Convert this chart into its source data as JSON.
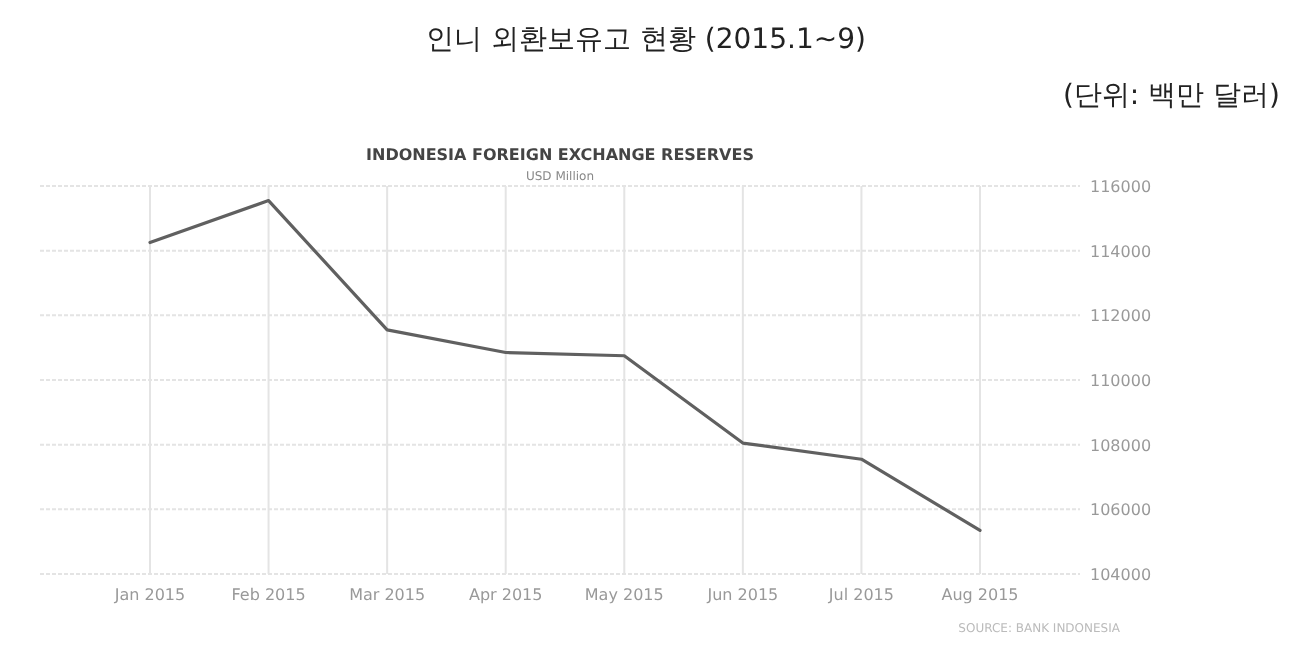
{
  "chart_data": {
    "type": "line",
    "title": "인니 외환보유고 현황 (2015.1~9)",
    "subtitle": "(단위: 백만 달러)",
    "ylabel": "USD Million",
    "annotations": [
      "INDONESIA FOREIGN EXCHANGE RESERVES",
      "SOURCE: BANK INDONESIA"
    ],
    "categories": [
      "Jan 2015",
      "Feb 2015",
      "Mar 2015",
      "Apr 2015",
      "May 2015",
      "Jun 2015",
      "Jul 2015",
      "Aug 2015"
    ],
    "series": [
      {
        "color": "#606060",
        "values": [
          114250,
          115550,
          111550,
          110850,
          110750,
          108050,
          107550,
          105350
        ]
      }
    ],
    "ylim": [
      104000,
      116000
    ],
    "yticks": [
      104000,
      106000,
      108000,
      110000,
      112000,
      114000,
      116000
    ],
    "grid": true,
    "marker": "none",
    "line_style": "solid"
  }
}
